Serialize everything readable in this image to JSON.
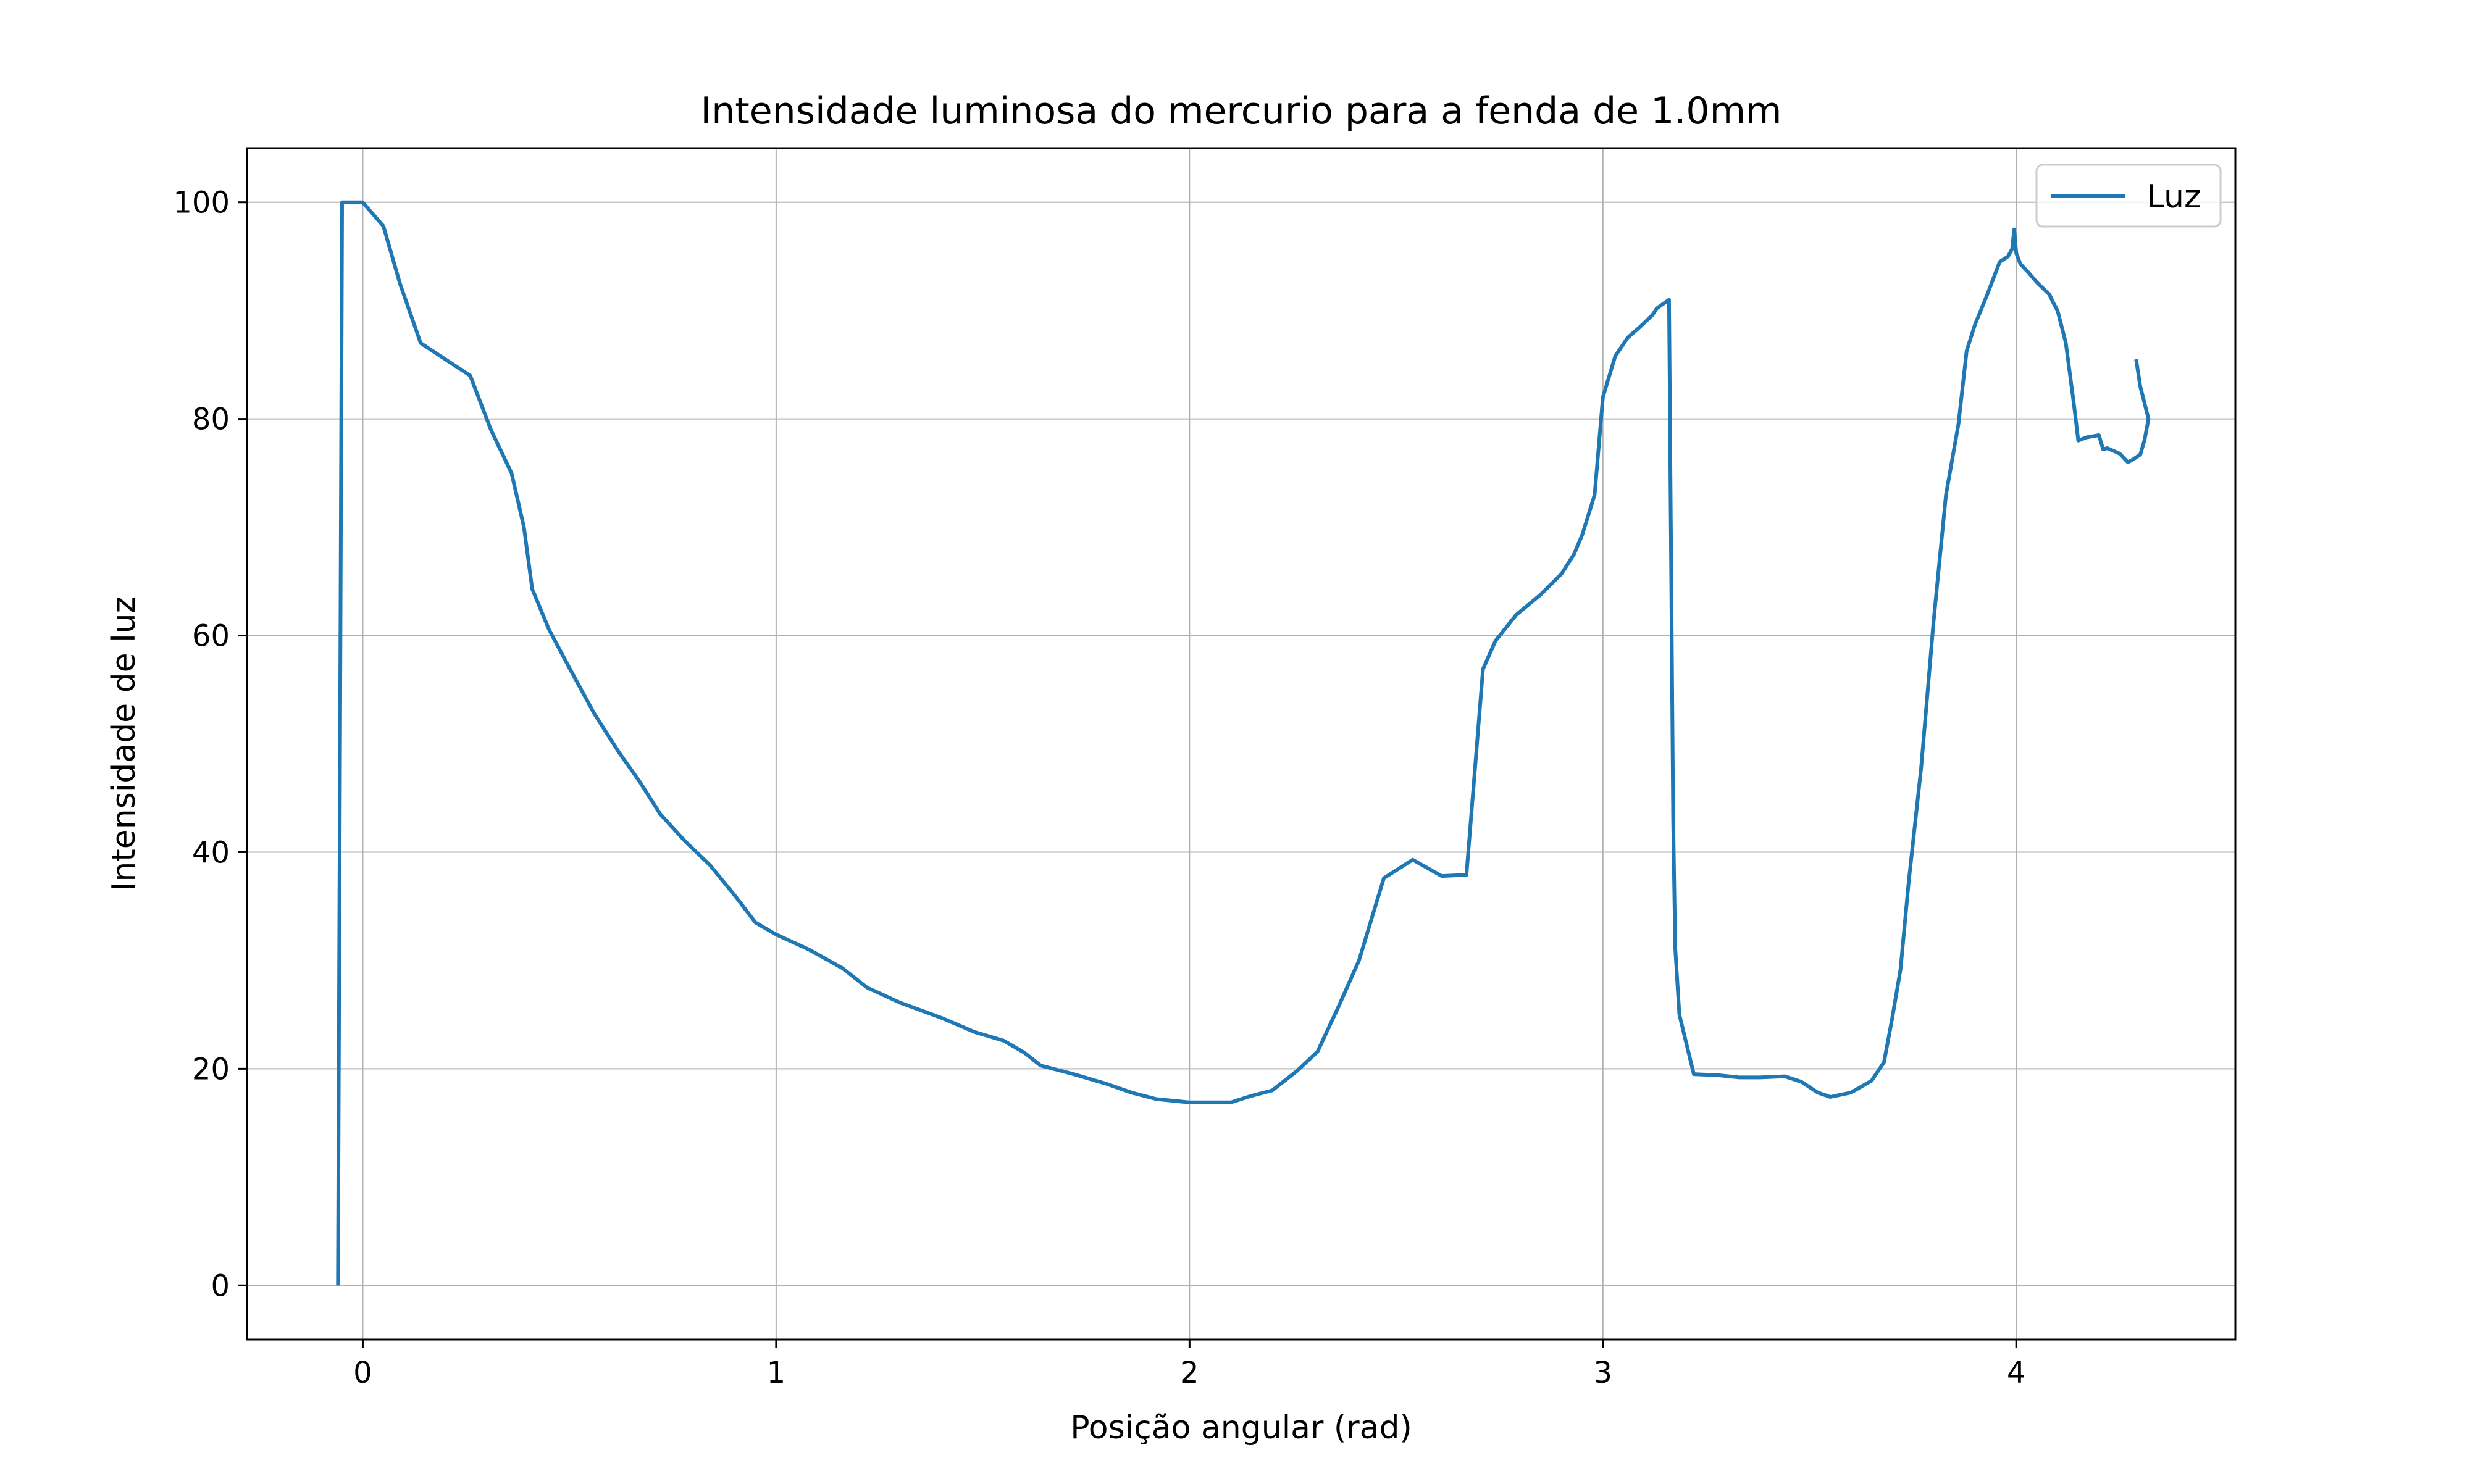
{
  "chart_data": {
    "type": "line",
    "title": "Intensidade luminosa do mercurio para a fenda de 1.0mm",
    "xlabel": "Posição angular (rad)",
    "ylabel": "Intensidade de luz",
    "xlim": [
      -0.28,
      4.53
    ],
    "ylim": [
      -5,
      105
    ],
    "xticks": [
      0,
      1,
      2,
      3,
      4
    ],
    "yticks": [
      0,
      20,
      40,
      60,
      80,
      100
    ],
    "grid": true,
    "legend_position": "top-right",
    "colors": {
      "series": "#1f77b4",
      "grid": "#b0b0b0",
      "axes": "#000000"
    },
    "series": [
      {
        "name": "Luz",
        "x": [
          -0.06,
          -0.05,
          0.0,
          0.05,
          0.09,
          0.14,
          0.2,
          0.26,
          0.31,
          0.36,
          0.39,
          0.41,
          0.45,
          0.5,
          0.56,
          0.62,
          0.67,
          0.72,
          0.78,
          0.84,
          0.9,
          0.95,
          1.0,
          1.08,
          1.16,
          1.22,
          1.3,
          1.4,
          1.48,
          1.55,
          1.6,
          1.64,
          1.72,
          1.8,
          1.86,
          1.92,
          2.0,
          2.1,
          2.15,
          2.2,
          2.26,
          2.31,
          2.36,
          2.41,
          2.47,
          2.54,
          2.61,
          2.67,
          2.71,
          2.74,
          2.79,
          2.85,
          2.9,
          2.93,
          2.95,
          2.98,
          3.0,
          3.03,
          3.06,
          3.09,
          3.12,
          3.13,
          3.16,
          3.17,
          3.175,
          3.185,
          3.22,
          3.28,
          3.33,
          3.38,
          3.44,
          3.48,
          3.52,
          3.55,
          3.6,
          3.65,
          3.68,
          3.7,
          3.72,
          3.74,
          3.77,
          3.8,
          3.83,
          3.86,
          3.88,
          3.9,
          3.93,
          3.96,
          3.98,
          3.99,
          3.995,
          4.0,
          4.01,
          4.03,
          4.05,
          4.08,
          4.09,
          4.1,
          4.12,
          4.14,
          4.15,
          4.17,
          4.2,
          4.21,
          4.22,
          4.25,
          4.27,
          4.28,
          4.3,
          4.31,
          4.32,
          4.3,
          4.29
        ],
        "values": [
          0,
          100,
          100,
          97.8,
          92.5,
          87.0,
          85.5,
          84.0,
          79.0,
          75.0,
          70.0,
          64.3,
          60.6,
          57.0,
          52.8,
          49.2,
          46.5,
          43.5,
          41.0,
          38.8,
          36.0,
          33.5,
          32.4,
          31.0,
          29.3,
          27.5,
          26.1,
          24.7,
          23.4,
          22.6,
          21.5,
          20.3,
          19.5,
          18.6,
          17.8,
          17.2,
          16.9,
          16.9,
          17.5,
          18.0,
          19.8,
          21.6,
          25.7,
          30.0,
          37.6,
          39.3,
          37.8,
          37.9,
          56.9,
          59.5,
          61.9,
          63.8,
          65.7,
          67.5,
          69.3,
          73.0,
          82.0,
          85.8,
          87.5,
          88.5,
          89.6,
          90.2,
          91.0,
          43.0,
          31.2,
          25.0,
          19.5,
          19.4,
          19.2,
          19.2,
          19.3,
          18.8,
          17.8,
          17.4,
          17.8,
          18.9,
          20.6,
          24.7,
          29.2,
          37.3,
          47.8,
          61.3,
          73.0,
          79.5,
          86.3,
          88.7,
          91.5,
          94.5,
          95.0,
          95.7,
          97.5,
          95.3,
          94.3,
          93.5,
          92.6,
          91.5,
          90.7,
          90.0,
          87.0,
          81.2,
          78.0,
          78.3,
          78.5,
          77.2,
          77.3,
          76.8,
          76.0,
          76.2,
          76.7,
          78.0,
          80.0,
          83.0,
          85.5
        ]
      }
    ]
  }
}
